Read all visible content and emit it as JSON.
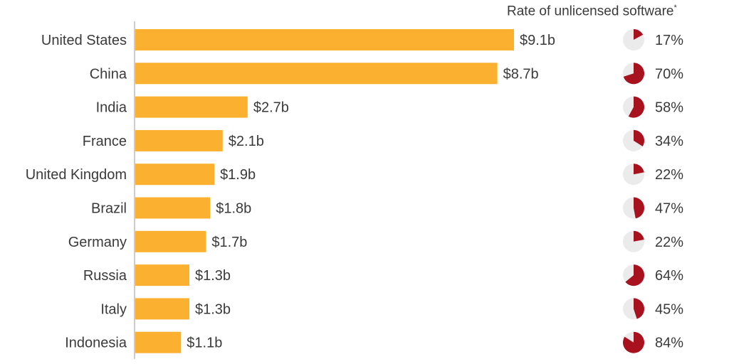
{
  "chart_data": {
    "type": "bar",
    "orientation": "horizontal",
    "categories": [
      "United States",
      "China",
      "India",
      "France",
      "United Kingdom",
      "Brazil",
      "Germany",
      "Russia",
      "Italy",
      "Indonesia"
    ],
    "values": [
      9.1,
      8.7,
      2.7,
      2.1,
      1.9,
      1.8,
      1.7,
      1.3,
      1.3,
      1.1
    ],
    "value_labels": [
      "$9.1b",
      "$8.7b",
      "$2.7b",
      "$2.1b",
      "$1.9b",
      "$1.8b",
      "$1.7b",
      "$1.3b",
      "$1.3b",
      "$1.1b"
    ],
    "rate_title": "Rate of unlicensed software",
    "rate_title_mark": "*",
    "rates": [
      17,
      70,
      58,
      34,
      22,
      47,
      22,
      64,
      45,
      84
    ],
    "rate_labels": [
      "17%",
      "70%",
      "58%",
      "34%",
      "22%",
      "47%",
      "22%",
      "64%",
      "45%",
      "84%"
    ],
    "colors": {
      "bar": "#FBB12F",
      "pie_fill": "#A8121E",
      "pie_bg": "#EBEBEB",
      "axis": "#9A9A9A"
    }
  }
}
